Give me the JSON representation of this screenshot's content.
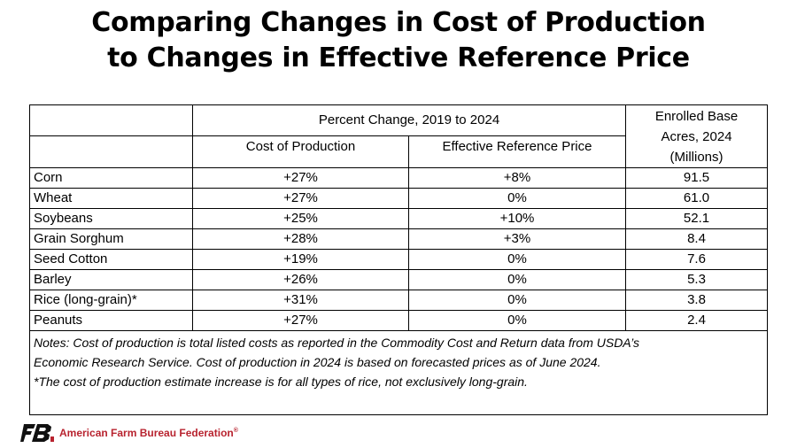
{
  "title": {
    "line1": "Comparing Changes in Cost of Production",
    "line2": "to Changes in Effective Reference Price"
  },
  "table": {
    "group_header": "Percent Change, 2019 to 2024",
    "col_cost": "Cost of Production",
    "col_erp": "Effective Reference Price",
    "col_acres_line1": "Enrolled Base",
    "col_acres_line2": "Acres, 2024",
    "col_acres_line3": "(Millions)",
    "rows": [
      {
        "crop": "Corn",
        "cost": "+27%",
        "erp": "+8%",
        "acres": "91.5"
      },
      {
        "crop": "Wheat",
        "cost": "+27%",
        "erp": "0%",
        "acres": "61.0"
      },
      {
        "crop": "Soybeans",
        "cost": "+25%",
        "erp": "+10%",
        "acres": "52.1"
      },
      {
        "crop": "Grain Sorghum",
        "cost": "+28%",
        "erp": "+3%",
        "acres": "8.4"
      },
      {
        "crop": "Seed Cotton",
        "cost": "+19%",
        "erp": "0%",
        "acres": "7.6"
      },
      {
        "crop": "Barley",
        "cost": "+26%",
        "erp": "0%",
        "acres": "5.3"
      },
      {
        "crop": "Rice (long-grain)*",
        "cost": "+31%",
        "erp": "0%",
        "acres": "3.8"
      },
      {
        "crop": "Peanuts",
        "cost": "+27%",
        "erp": "0%",
        "acres": "2.4"
      }
    ],
    "notes": {
      "line1": "Notes: Cost of production is total listed costs as reported in the Commodity Cost and Return data from USDA’s",
      "line2": "Economic Research Service. Cost of production in 2024 is based on forecasted prices as of June 2024.",
      "line3": "*The cost of production estimate increase is for all types of rice, not exclusively long-grain."
    }
  },
  "footer": {
    "org_name": "American Farm Bureau Federation",
    "reg_mark": "®",
    "logo_icon": "fb-logo-icon",
    "brand_color": "#b8232f"
  }
}
